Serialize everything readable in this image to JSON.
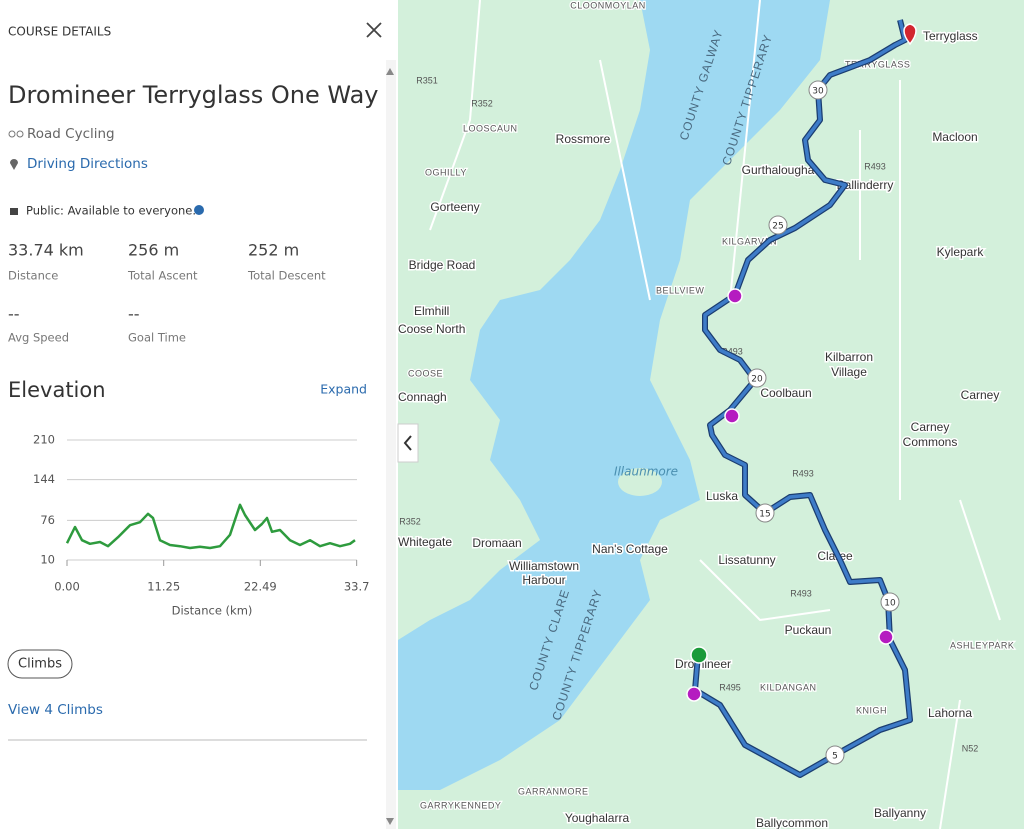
{
  "panel": {
    "header": "COURSE DETAILS",
    "title": "Dromineer Terryglass One Way",
    "activity": "Road Cycling",
    "directions": "Driving Directions",
    "privacy": "Public: Available to everyone.",
    "stats": [
      {
        "value": "33.74 km",
        "label": "Distance"
      },
      {
        "value": "256 m",
        "label": "Total Ascent"
      },
      {
        "value": "252 m",
        "label": "Total Descent"
      },
      {
        "value": "--",
        "label": "Avg Speed"
      },
      {
        "value": "--",
        "label": "Goal Time"
      }
    ],
    "elevation_title": "Elevation",
    "expand": "Expand",
    "climbs_button": "Climbs",
    "view_climbs": "View 4 Climbs"
  },
  "chart_data": {
    "type": "line",
    "x_label": "Distance (km)",
    "x": [
      0,
      0.93,
      1.75,
      2.68,
      3.84,
      4.77,
      5.93,
      7.33,
      8.49,
      9.42,
      10.0,
      10.82,
      11.98,
      13.15,
      14.31,
      15.47,
      16.64,
      17.8,
      18.96,
      20.13,
      20.71,
      21.87,
      22.68,
      23.27,
      23.85,
      24.78,
      25.94,
      27.11,
      28.27,
      29.43,
      30.6,
      31.76,
      32.92,
      33.51
    ],
    "series": [
      {
        "color": "#2e9b3e",
        "values": [
          38,
          65,
          43,
          37,
          40,
          33,
          48,
          68,
          73,
          87,
          80,
          43,
          35,
          33,
          30,
          32,
          30,
          33,
          52,
          102,
          85,
          60,
          70,
          80,
          57,
          60,
          43,
          35,
          43,
          33,
          38,
          33,
          37,
          43
        ]
      }
    ],
    "xlim": [
      0,
      33.74
    ],
    "ylim": [
      10,
      210
    ],
    "yticks": [
      10,
      76,
      144,
      210
    ],
    "xticks": [
      {
        "value": 0,
        "label": "0.00"
      },
      11.25,
      22.49,
      33.7
    ],
    "grid": true
  },
  "map": {
    "labels": [
      "CLOONMOYLAN",
      "Terryglass",
      "TERRYGLASS",
      "R351",
      "R352",
      "LOOSCAUN",
      "Rossmore",
      "Macloon",
      "OGHILLY",
      "Gurthalougha",
      "Ballinderry",
      "R493",
      "Gorteeny",
      "KILGARVAN",
      "Kylepark",
      "Bridge Road",
      "BELLVIEW",
      "Elmhill",
      "Coose North",
      "COOSE",
      "Connagh",
      "Kilbarron",
      "Village",
      "Coolbaun",
      "Carney",
      "Carney",
      "Commons",
      "Illaunmore",
      "R493",
      "Luska",
      "R352",
      "Whitegate",
      "Dromaan",
      "Nan's Cottage",
      "Lissatunny",
      "Williamstown",
      "Harbour",
      "Claree",
      "R493",
      "Puckaun",
      "ASHLEYPARK",
      "Dromineer",
      "R495",
      "KILDANGAN",
      "Lahorna",
      "KNIGH",
      "N52",
      "GARRANMORE",
      "GARRYKENNEDY",
      "Youghalarra",
      "Ballycommon",
      "Ballyanny",
      "COUNTY GALWAY",
      "COUNTY TIPPERARY",
      "COUNTY CLARE",
      "COUNTY TIPPERARY",
      "R493"
    ],
    "route_markers": [
      "5",
      "10",
      "15",
      "20",
      "25",
      "30"
    ]
  }
}
